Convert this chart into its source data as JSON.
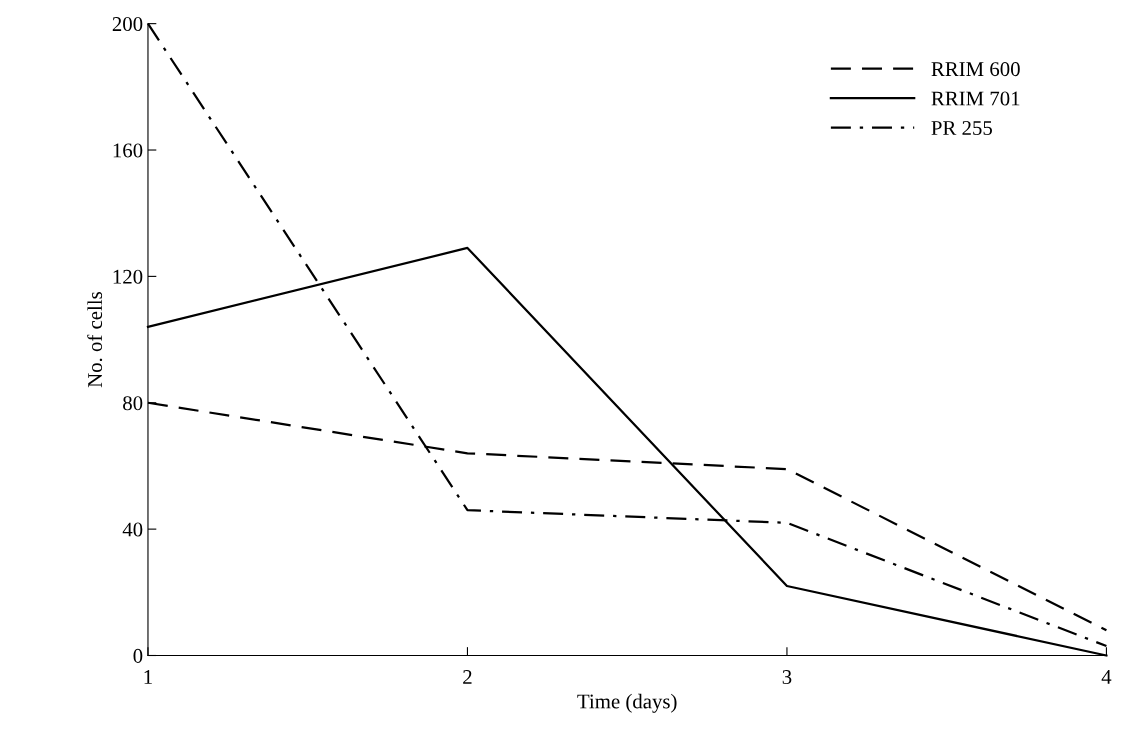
{
  "chart_data": {
    "type": "line",
    "xlabel": "Time (days)",
    "ylabel": "No. of cells",
    "x": [
      1,
      2,
      3,
      4
    ],
    "series": [
      {
        "name": "RRIM 600",
        "color": "#000000",
        "line_style": "dashed",
        "values": [
          80,
          64,
          59,
          8
        ]
      },
      {
        "name": "RRIM 701",
        "color": "#000000",
        "line_style": "solid",
        "values": [
          104,
          129,
          22,
          0
        ]
      },
      {
        "name": "PR 255",
        "color": "#000000",
        "line_style": "dashdot",
        "values": [
          200,
          46,
          42,
          3
        ]
      }
    ],
    "xlim": [
      1,
      4
    ],
    "xticks": [
      1,
      2,
      3,
      4
    ],
    "ylim": [
      0,
      200
    ],
    "yticks": [
      0,
      40,
      80,
      120,
      160,
      200
    ],
    "grid": false,
    "legend": "top right",
    "marker": "none"
  }
}
